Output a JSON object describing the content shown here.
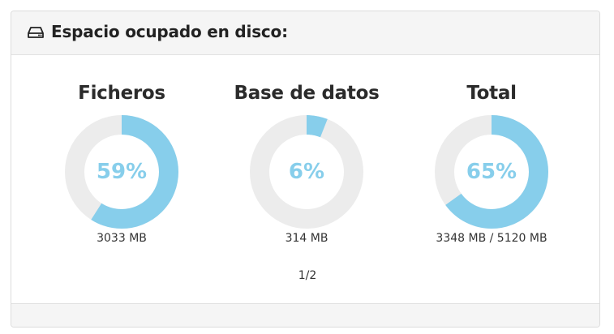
{
  "header": {
    "title": "Espacio ocupado en disco:",
    "icon": "hard-drive-icon"
  },
  "stats": [
    {
      "title": "Ficheros",
      "percent_label": "59%",
      "percent": 59,
      "size": "3033 MB"
    },
    {
      "title": "Base de datos",
      "percent_label": "6%",
      "percent": 6,
      "size": "314 MB"
    },
    {
      "title": "Total",
      "percent_label": "65%",
      "percent": 65,
      "size": "3348 MB / 5120 MB"
    }
  ],
  "pager": "1/2",
  "colors": {
    "fill": "#87ceeb",
    "track": "#ececec"
  }
}
